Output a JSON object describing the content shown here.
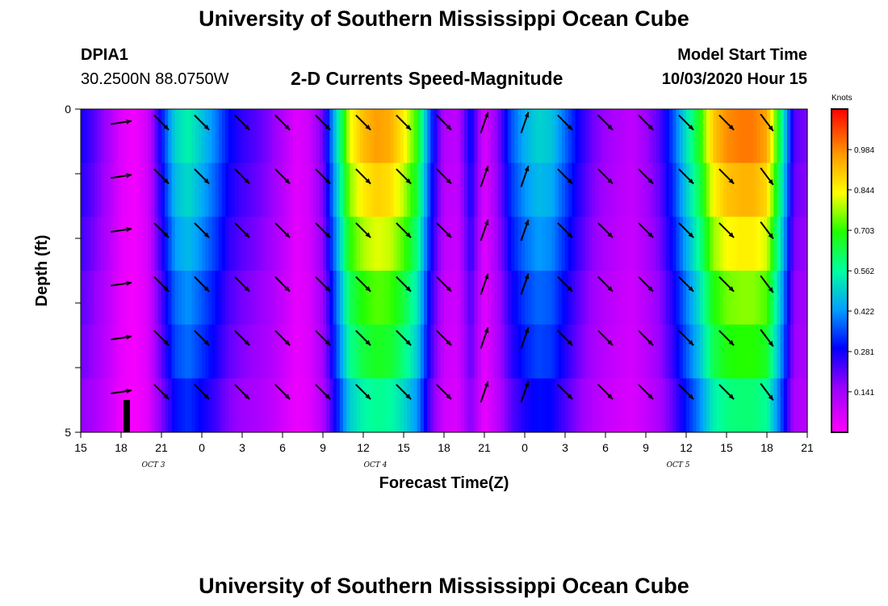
{
  "header": {
    "title": "University of Southern Mississippi Ocean Cube",
    "station": "DPIA1",
    "coords": "30.2500N 88.0750W",
    "subtitle": "2-D Currents Speed-Magnitude",
    "model_label": "Model Start Time",
    "model_time": "10/03/2020 Hour 15"
  },
  "footer": {
    "title": "University of Southern Mississippi Ocean Cube"
  },
  "chart_data": {
    "type": "heatmap",
    "title": "2-D Currents Speed-Magnitude",
    "xlabel": "Forecast Time(Z)",
    "ylabel": "Depth (ft)",
    "x_tick_labels": [
      "15",
      "18",
      "21",
      "0",
      "3",
      "6",
      "9",
      "12",
      "15",
      "18",
      "21",
      "0",
      "3",
      "6",
      "9",
      "12",
      "15",
      "18",
      "21"
    ],
    "day_labels": [
      {
        "label": "OCT 3",
        "tick_index": 1.8
      },
      {
        "label": "OCT 4",
        "tick_index": 7.3
      },
      {
        "label": "OCT 5",
        "tick_index": 14.8
      }
    ],
    "y_tick_labels": [
      "0",
      "5"
    ],
    "ylim": [
      0,
      5
    ],
    "x_hours_from_start": [
      0,
      54
    ],
    "colorbar": {
      "unit": "Knots",
      "ticks": [
        "0.984",
        "0.844",
        "0.703",
        "0.562",
        "0.422",
        "0.281",
        "0.141"
      ],
      "range": [
        0.0,
        1.125
      ]
    },
    "speed_profile_hours": [
      0,
      1,
      2,
      3,
      4,
      5,
      6,
      7,
      8,
      9,
      10,
      11,
      12,
      13,
      14,
      15,
      16,
      17,
      18,
      19,
      20,
      21,
      22,
      23,
      24,
      25,
      26,
      27,
      28,
      29,
      30,
      31,
      32,
      33,
      34,
      35,
      36,
      37,
      38,
      39,
      40,
      41,
      42,
      43,
      44,
      45,
      46,
      47,
      48,
      49,
      50,
      51,
      52,
      53,
      54
    ],
    "speed_surface": [
      0.28,
      0.22,
      0.14,
      0.05,
      0.02,
      0.08,
      0.3,
      0.5,
      0.55,
      0.48,
      0.4,
      0.3,
      0.25,
      0.22,
      0.18,
      0.12,
      0.05,
      0.08,
      0.2,
      0.5,
      0.82,
      0.92,
      0.96,
      0.94,
      0.85,
      0.7,
      0.35,
      0.12,
      0.1,
      0.3,
      0.05,
      0.18,
      0.36,
      0.45,
      0.5,
      0.48,
      0.38,
      0.28,
      0.2,
      0.15,
      0.12,
      0.1,
      0.15,
      0.22,
      0.35,
      0.52,
      0.68,
      0.9,
      0.98,
      1.0,
      1.0,
      0.95,
      0.62,
      0.22,
      0.18
    ],
    "depth_factors": [
      1.0,
      0.93,
      0.85,
      0.76,
      0.7,
      0.6
    ],
    "arrows": [
      {
        "depth_row": 0,
        "hours": [
          4,
          7,
          10,
          13,
          15,
          18,
          21,
          24,
          27,
          33,
          36,
          42,
          45,
          48,
          51
        ]
      },
      {
        "depth_row": 1,
        "hours": [
          3,
          6,
          9,
          12,
          15,
          18,
          21,
          24,
          27,
          30,
          33,
          39,
          42,
          45,
          48,
          51
        ]
      }
    ]
  }
}
